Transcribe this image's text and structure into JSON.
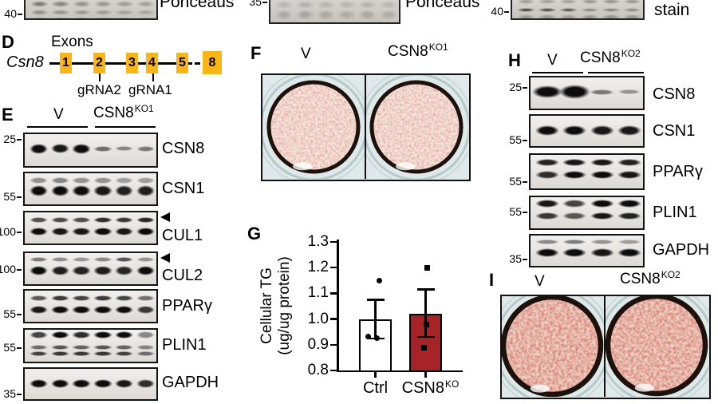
{
  "colors": {
    "exon": "#FBB615",
    "ko_bar": "#A62428",
    "band_dark": "#0d0d0d",
    "band_gray": "#6f6a66",
    "dish_bg": "#dfe9ea",
    "dish_ring": "#1d110b"
  },
  "top_strip": {
    "panels": [
      {
        "mw": "40",
        "label": "Ponceaus"
      },
      {
        "mw": "35",
        "label": "Ponceaus"
      },
      {
        "mw": "40",
        "label": "stain"
      }
    ]
  },
  "panel_d": {
    "letter": "D",
    "title": "Exons",
    "gene": "Csn8",
    "exons": [
      "1",
      "2",
      "3",
      "4",
      "5",
      "8"
    ],
    "grnas": [
      "gRNA2",
      "gRNA1"
    ]
  },
  "panel_e": {
    "letter": "E",
    "group1": "V",
    "group2": "CSN8",
    "group2_sup": "KO1",
    "rows": [
      {
        "label": "CSN8",
        "mw": "25",
        "bands": [
          {
            "y": 0.42,
            "h": 12,
            "hs": [
              13,
              12,
              13,
              7,
              6,
              7
            ],
            "a": [
              1,
              0.95,
              1,
              0.55,
              0.45,
              0.5
            ]
          }
        ]
      },
      {
        "label": "CSN1",
        "mw": "55",
        "bands": [
          {
            "y": 0.22,
            "h": 8,
            "a": [
              0.4,
              0.45,
              0.4,
              0.4,
              0.35,
              0.35
            ]
          },
          {
            "y": 0.52,
            "h": 14,
            "a": [
              1,
              1,
              1,
              0.95,
              0.9,
              0.92
            ]
          }
        ]
      },
      {
        "label": "CUL1",
        "mw": "100",
        "arrow": true,
        "bands": [
          {
            "y": 0.22,
            "h": 7,
            "a": [
              0.7,
              0.72,
              0.7,
              0.85,
              0.8,
              0.88
            ]
          },
          {
            "y": 0.55,
            "h": 10,
            "a": [
              1,
              0.95,
              0.95,
              1,
              0.95,
              1
            ]
          }
        ]
      },
      {
        "label": "CUL2",
        "mw": "100",
        "arrow": true,
        "bands": [
          {
            "y": 0.18,
            "h": 6,
            "a": [
              0.5,
              0.42,
              0.38,
              0.45,
              0.68,
              0.4
            ]
          },
          {
            "y": 0.5,
            "h": 12,
            "a": [
              1,
              0.92,
              0.9,
              0.92,
              0.88,
              1
            ]
          }
        ]
      },
      {
        "label": "PPARγ",
        "mw": "55",
        "bands": [
          {
            "y": 0.22,
            "h": 7,
            "a": [
              0.65,
              0.8,
              0.75,
              0.8,
              0.75,
              0.55
            ]
          },
          {
            "y": 0.56,
            "h": 10,
            "a": [
              0.95,
              1,
              1,
              1,
              1,
              0.8
            ]
          }
        ]
      },
      {
        "label": "PLIN1",
        "mw": "55",
        "bands": [
          {
            "y": 0.15,
            "h": 9,
            "a": [
              0.75,
              1,
              0.85,
              1,
              1,
              0.45
            ]
          },
          {
            "y": 0.5,
            "h": 6,
            "a": [
              0.55,
              0.65,
              0.6,
              0.65,
              0.6,
              0.45
            ]
          },
          {
            "y": 0.68,
            "h": 6,
            "a": [
              0.75,
              0.8,
              0.8,
              0.8,
              0.75,
              0.55
            ]
          }
        ]
      },
      {
        "label": "GAPDH",
        "mw": "35",
        "bands": [
          {
            "y": 0.45,
            "h": 11,
            "a": [
              1,
              1,
              1,
              1,
              0.95,
              0.85
            ]
          }
        ]
      }
    ]
  },
  "panel_f": {
    "letter": "F",
    "group1": "V",
    "group2": "CSN8",
    "group2_sup": "KO1"
  },
  "panel_g": {
    "letter": "G"
  },
  "chart_data": {
    "type": "bar",
    "title": "",
    "ylabel": "Cellular TG (ug/ug protein)",
    "ylabel_lines": [
      "Cellular TG",
      "(ug/ug protein)"
    ],
    "ylim": [
      0.8,
      1.3
    ],
    "yticks": [
      "1.3",
      "1.2",
      "1.1",
      "1.0",
      "0.9",
      "0.8"
    ],
    "categories": [
      "Ctrl",
      "CSN8KO"
    ],
    "categories_rich": [
      {
        "text": "Ctrl",
        "sup": ""
      },
      {
        "text": "CSN8",
        "sup": "KO"
      }
    ],
    "values": [
      1.0,
      1.02
    ],
    "error_up": [
      0.075,
      0.095
    ],
    "error_down": [
      0.075,
      0.09
    ],
    "scatter": [
      [
        {
          "v": 1.15,
          "dx": 5
        },
        {
          "v": 0.933,
          "dx": -9
        },
        {
          "v": 0.925,
          "dx": 2
        }
      ],
      [
        {
          "v": 1.2,
          "dx": 2
        },
        {
          "v": 0.98,
          "dx": 1
        },
        {
          "v": 0.89,
          "dx": -2
        }
      ]
    ],
    "bar_colors": [
      "#FFFFFF",
      "#A62428"
    ],
    "marker_shapes": [
      "circle",
      "square"
    ],
    "grid": false,
    "legend_position": "none"
  },
  "panel_h": {
    "letter": "H",
    "group1": "V",
    "group2": "CSN8",
    "group2_sup": "KO2",
    "rows": [
      {
        "label": "CSN8",
        "mw": "25",
        "bands": [
          {
            "y": 0.42,
            "h": 14,
            "hs": [
              16,
              18,
              7,
              6
            ],
            "a": [
              1,
              1,
              0.5,
              0.38
            ],
            "wf": [
              1.12,
              1.12,
              0.9,
              0.85
            ]
          }
        ]
      },
      {
        "label": "CSN1",
        "mw": "55",
        "bands": [
          {
            "y": 0.45,
            "h": 13,
            "a": [
              1,
              1,
              0.95,
              0.95
            ]
          }
        ]
      },
      {
        "label": "PPARγ",
        "mw": "55",
        "bands": [
          {
            "y": 0.2,
            "h": 9,
            "a": [
              0.9,
              0.95,
              0.95,
              0.9
            ]
          },
          {
            "y": 0.55,
            "h": 10,
            "a": [
              0.85,
              1,
              1,
              0.95
            ]
          }
        ]
      },
      {
        "label": "PLIN1",
        "mw": "55",
        "bands": [
          {
            "y": 0.18,
            "h": 10,
            "a": [
              0.95,
              0.75,
              1,
              1
            ]
          },
          {
            "y": 0.55,
            "h": 9,
            "a": [
              0.8,
              0.65,
              0.95,
              0.9
            ]
          }
        ]
      },
      {
        "label": "GAPDH",
        "mw": "35",
        "bands": [
          {
            "y": 0.2,
            "h": 6,
            "a": [
              0.45,
              0.5,
              0.4,
              0.35
            ]
          },
          {
            "y": 0.5,
            "h": 11,
            "a": [
              1,
              1,
              0.95,
              1
            ]
          }
        ]
      }
    ]
  },
  "panel_i": {
    "letter": "I",
    "group1": "V",
    "group2": "CSN8",
    "group2_sup": "KO2"
  }
}
